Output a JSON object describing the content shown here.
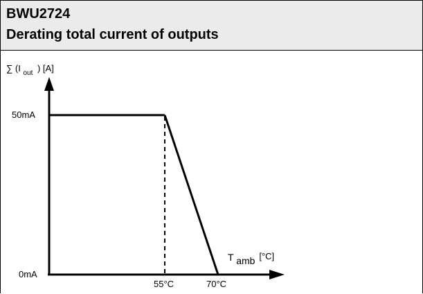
{
  "header": {
    "model": "BWU2724",
    "title": "Derating total current of outputs"
  },
  "chart_data": {
    "type": "line",
    "title": "Derating total current of outputs",
    "ylabel": {
      "prefix": "∑ (I",
      "subscript": "out",
      "suffix": ") [A]"
    },
    "xlabel": {
      "main": "T",
      "subscript": "amb",
      "suffix": "[°C]"
    },
    "y_ticks": [
      {
        "label": "50mA",
        "value": 50
      },
      {
        "label": "0mA",
        "value": 0
      }
    ],
    "x_ticks": [
      {
        "label": "55°C",
        "value": 55
      },
      {
        "label": "70°C",
        "value": 70
      }
    ],
    "series": [
      {
        "x": [
          55,
          70
        ],
        "y": [
          50,
          0
        ]
      }
    ],
    "flat_segment": {
      "y": 50,
      "x_end": 55
    },
    "reference_line": {
      "x": 55,
      "style": "dashed"
    },
    "colors": {
      "line": "#000000",
      "header_bg": "#ebebeb"
    },
    "grid": false
  }
}
